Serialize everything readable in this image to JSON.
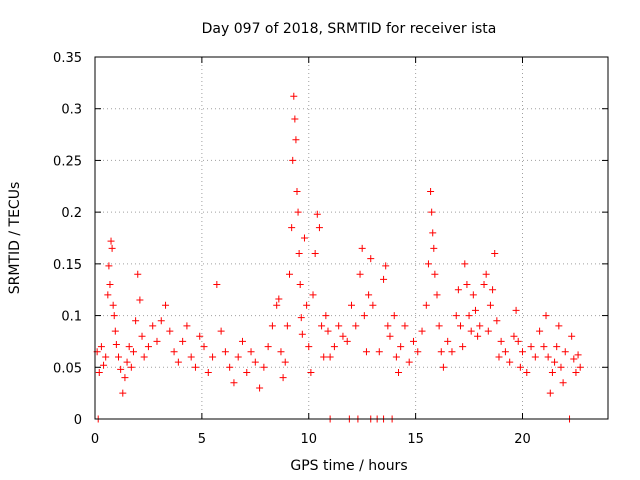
{
  "chart_data": {
    "type": "scatter",
    "title": "Day 097 of 2018, SRMTID for receiver ista",
    "xlabel": "GPS time / hours",
    "ylabel": "SRMTID / TECUs",
    "xlim": [
      0,
      24
    ],
    "ylim": [
      0,
      0.35
    ],
    "xticks": [
      0,
      5,
      10,
      15,
      20
    ],
    "xtick_labels": [
      "0",
      "5",
      "10",
      "15",
      "20"
    ],
    "yticks": [
      0,
      0.05,
      0.1,
      0.15,
      0.2,
      0.25,
      0.3,
      0.35
    ],
    "ytick_labels": [
      "0",
      "0.05",
      "0.1",
      "0.15",
      "0.2",
      "0.25",
      "0.3",
      "0.35"
    ],
    "grid": true,
    "marker": "+",
    "color": "#ff0000",
    "series": [
      {
        "name": "SRMTID",
        "points": [
          [
            0.1,
            0.065
          ],
          [
            0.2,
            0.045
          ],
          [
            0.3,
            0.07
          ],
          [
            0.4,
            0.052
          ],
          [
            0.5,
            0.06
          ],
          [
            0.6,
            0.12
          ],
          [
            0.65,
            0.148
          ],
          [
            0.7,
            0.13
          ],
          [
            0.75,
            0.172
          ],
          [
            0.8,
            0.165
          ],
          [
            0.85,
            0.11
          ],
          [
            0.9,
            0.1
          ],
          [
            0.95,
            0.085
          ],
          [
            1.0,
            0.072
          ],
          [
            1.1,
            0.06
          ],
          [
            1.2,
            0.048
          ],
          [
            1.3,
            0.025
          ],
          [
            1.4,
            0.04
          ],
          [
            1.5,
            0.055
          ],
          [
            1.6,
            0.07
          ],
          [
            1.7,
            0.05
          ],
          [
            1.8,
            0.065
          ],
          [
            1.9,
            0.095
          ],
          [
            2.0,
            0.14
          ],
          [
            2.1,
            0.115
          ],
          [
            2.2,
            0.08
          ],
          [
            2.3,
            0.06
          ],
          [
            2.5,
            0.07
          ],
          [
            2.7,
            0.09
          ],
          [
            2.9,
            0.075
          ],
          [
            3.1,
            0.095
          ],
          [
            3.3,
            0.11
          ],
          [
            3.5,
            0.085
          ],
          [
            3.7,
            0.065
          ],
          [
            3.9,
            0.055
          ],
          [
            4.1,
            0.075
          ],
          [
            4.3,
            0.09
          ],
          [
            4.5,
            0.06
          ],
          [
            4.7,
            0.05
          ],
          [
            4.9,
            0.08
          ],
          [
            5.1,
            0.07
          ],
          [
            5.3,
            0.045
          ],
          [
            5.5,
            0.06
          ],
          [
            5.7,
            0.13
          ],
          [
            5.9,
            0.085
          ],
          [
            6.1,
            0.065
          ],
          [
            6.3,
            0.05
          ],
          [
            6.5,
            0.035
          ],
          [
            6.7,
            0.06
          ],
          [
            6.9,
            0.075
          ],
          [
            7.1,
            0.045
          ],
          [
            7.3,
            0.065
          ],
          [
            7.5,
            0.055
          ],
          [
            7.7,
            0.03
          ],
          [
            7.9,
            0.05
          ],
          [
            8.1,
            0.07
          ],
          [
            8.3,
            0.09
          ],
          [
            8.5,
            0.11
          ],
          [
            8.6,
            0.116
          ],
          [
            8.7,
            0.065
          ],
          [
            8.8,
            0.04
          ],
          [
            8.9,
            0.055
          ],
          [
            9.0,
            0.09
          ],
          [
            9.1,
            0.14
          ],
          [
            9.2,
            0.185
          ],
          [
            9.25,
            0.25
          ],
          [
            9.3,
            0.312
          ],
          [
            9.35,
            0.29
          ],
          [
            9.4,
            0.27
          ],
          [
            9.45,
            0.22
          ],
          [
            9.5,
            0.2
          ],
          [
            9.55,
            0.16
          ],
          [
            9.6,
            0.13
          ],
          [
            9.65,
            0.098
          ],
          [
            9.7,
            0.082
          ],
          [
            9.8,
            0.175
          ],
          [
            9.9,
            0.11
          ],
          [
            10.0,
            0.07
          ],
          [
            10.1,
            0.045
          ],
          [
            10.2,
            0.12
          ],
          [
            10.3,
            0.16
          ],
          [
            10.4,
            0.198
          ],
          [
            10.5,
            0.185
          ],
          [
            10.6,
            0.09
          ],
          [
            10.7,
            0.06
          ],
          [
            10.8,
            0.1
          ],
          [
            10.9,
            0.085
          ],
          [
            11.0,
            0.06
          ],
          [
            11.2,
            0.07
          ],
          [
            11.4,
            0.09
          ],
          [
            11.6,
            0.08
          ],
          [
            11.8,
            0.075
          ],
          [
            12.0,
            0.11
          ],
          [
            12.2,
            0.09
          ],
          [
            12.4,
            0.14
          ],
          [
            12.5,
            0.165
          ],
          [
            12.6,
            0.1
          ],
          [
            12.7,
            0.065
          ],
          [
            12.8,
            0.12
          ],
          [
            12.9,
            0.155
          ],
          [
            13.0,
            0.11
          ],
          [
            13.3,
            0.065
          ],
          [
            13.5,
            0.135
          ],
          [
            13.6,
            0.148
          ],
          [
            13.7,
            0.09
          ],
          [
            13.8,
            0.08
          ],
          [
            14.0,
            0.1
          ],
          [
            14.1,
            0.06
          ],
          [
            14.2,
            0.045
          ],
          [
            14.3,
            0.07
          ],
          [
            14.5,
            0.09
          ],
          [
            14.7,
            0.055
          ],
          [
            14.9,
            0.075
          ],
          [
            15.1,
            0.065
          ],
          [
            15.3,
            0.085
          ],
          [
            15.5,
            0.11
          ],
          [
            15.6,
            0.15
          ],
          [
            15.7,
            0.22
          ],
          [
            15.75,
            0.2
          ],
          [
            15.8,
            0.18
          ],
          [
            15.85,
            0.165
          ],
          [
            15.9,
            0.14
          ],
          [
            16.0,
            0.12
          ],
          [
            16.1,
            0.09
          ],
          [
            16.2,
            0.065
          ],
          [
            16.3,
            0.05
          ],
          [
            16.5,
            0.075
          ],
          [
            16.7,
            0.065
          ],
          [
            16.9,
            0.1
          ],
          [
            17.0,
            0.125
          ],
          [
            17.1,
            0.09
          ],
          [
            17.2,
            0.07
          ],
          [
            17.3,
            0.15
          ],
          [
            17.4,
            0.13
          ],
          [
            17.5,
            0.1
          ],
          [
            17.6,
            0.085
          ],
          [
            17.7,
            0.12
          ],
          [
            17.8,
            0.105
          ],
          [
            17.9,
            0.08
          ],
          [
            18.0,
            0.09
          ],
          [
            18.2,
            0.13
          ],
          [
            18.3,
            0.14
          ],
          [
            18.4,
            0.085
          ],
          [
            18.5,
            0.11
          ],
          [
            18.6,
            0.125
          ],
          [
            18.7,
            0.16
          ],
          [
            18.8,
            0.095
          ],
          [
            18.9,
            0.06
          ],
          [
            19.0,
            0.075
          ],
          [
            19.2,
            0.065
          ],
          [
            19.4,
            0.055
          ],
          [
            19.6,
            0.08
          ],
          [
            19.7,
            0.105
          ],
          [
            19.8,
            0.075
          ],
          [
            19.9,
            0.05
          ],
          [
            20.0,
            0.065
          ],
          [
            20.2,
            0.045
          ],
          [
            20.4,
            0.07
          ],
          [
            20.6,
            0.06
          ],
          [
            20.8,
            0.085
          ],
          [
            21.0,
            0.07
          ],
          [
            21.1,
            0.1
          ],
          [
            21.2,
            0.06
          ],
          [
            21.3,
            0.025
          ],
          [
            21.4,
            0.045
          ],
          [
            21.5,
            0.055
          ],
          [
            21.6,
            0.07
          ],
          [
            21.7,
            0.09
          ],
          [
            21.8,
            0.05
          ],
          [
            21.9,
            0.035
          ],
          [
            22.0,
            0.065
          ],
          [
            22.3,
            0.08
          ],
          [
            22.4,
            0.058
          ],
          [
            22.5,
            0.045
          ],
          [
            22.6,
            0.062
          ],
          [
            22.7,
            0.05
          ],
          [
            0.15,
            0.0
          ],
          [
            11.0,
            0.0
          ],
          [
            11.9,
            0.0
          ],
          [
            12.3,
            0.0
          ],
          [
            12.9,
            0.0
          ],
          [
            13.2,
            0.0
          ],
          [
            13.5,
            0.0
          ],
          [
            13.9,
            0.0
          ],
          [
            22.2,
            0.0
          ]
        ]
      }
    ]
  }
}
